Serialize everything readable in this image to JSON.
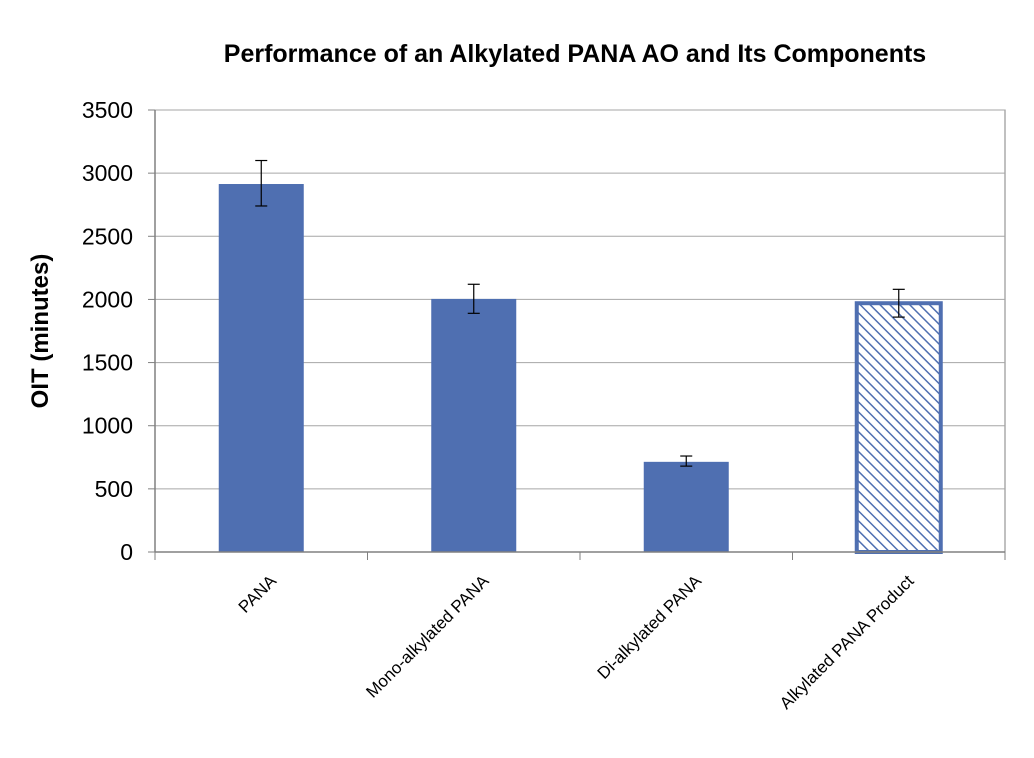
{
  "chart_data": {
    "type": "bar",
    "title": "Performance of an Alkylated PANA AO and Its Components",
    "ylabel": "OIT (minutes)",
    "xlabel": "",
    "ylim": [
      0,
      3500
    ],
    "yticks": [
      0,
      500,
      1000,
      1500,
      2000,
      2500,
      3000,
      3500
    ],
    "categories": [
      "PANA",
      "Mono-alkylated PANA",
      "Di-alkylated PANA",
      "Alkylated PANA Product"
    ],
    "values": [
      2910,
      2000,
      710,
      1970
    ],
    "error_low": [
      2740,
      1890,
      680,
      1860
    ],
    "error_high": [
      3100,
      2120,
      760,
      2080
    ],
    "bar_styles": [
      "solid",
      "solid",
      "solid",
      "hatched"
    ],
    "grid": true,
    "legend": "none",
    "colors": {
      "bar": "#4f6fb1",
      "grid": "#a6a6a6",
      "axis": "#808080"
    }
  }
}
